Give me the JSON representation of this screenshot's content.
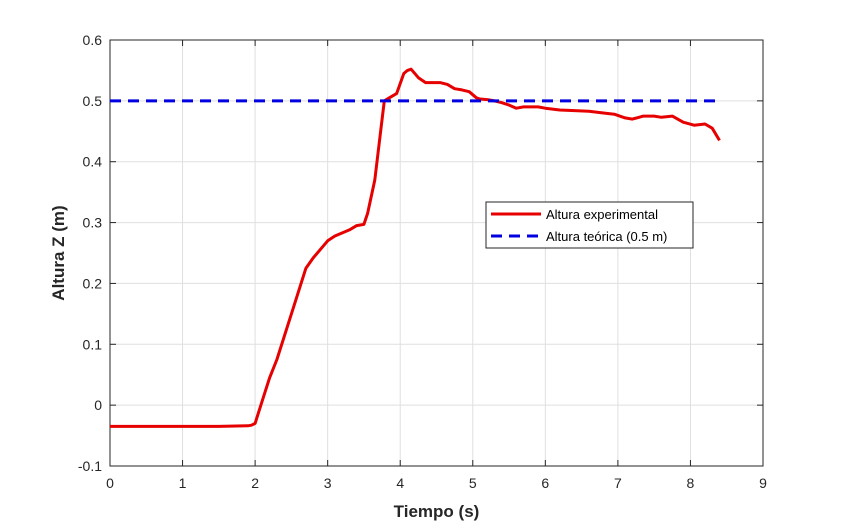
{
  "chart_data": {
    "type": "line",
    "title": "",
    "xlabel": "Tiempo (s)",
    "ylabel": "Altura Z (m)",
    "xlim": [
      0,
      9
    ],
    "ylim": [
      -0.1,
      0.6
    ],
    "xticks": [
      0,
      1,
      2,
      3,
      4,
      5,
      6,
      7,
      8,
      9
    ],
    "yticks": [
      -0.1,
      0,
      0.1,
      0.2,
      0.3,
      0.4,
      0.5,
      0.6
    ],
    "xtick_labels": [
      "0",
      "1",
      "2",
      "3",
      "4",
      "5",
      "6",
      "7",
      "8",
      "9"
    ],
    "ytick_labels": [
      "-0.1",
      "0",
      "0.1",
      "0.2",
      "0.3",
      "0.4",
      "0.5",
      "0.6"
    ],
    "grid": true,
    "legend_position": "right-center",
    "series": [
      {
        "name": "Altura experimental",
        "color": "#e60000",
        "style": "solid",
        "x": [
          0,
          0.5,
          1,
          1.5,
          1.9,
          1.95,
          2.0,
          2.1,
          2.2,
          2.3,
          2.5,
          2.7,
          2.8,
          3.0,
          3.1,
          3.3,
          3.4,
          3.5,
          3.55,
          3.65,
          3.72,
          3.78,
          3.85,
          3.95,
          4.05,
          4.1,
          4.15,
          4.25,
          4.35,
          4.45,
          4.55,
          4.65,
          4.75,
          4.85,
          4.95,
          5.05,
          5.1,
          5.2,
          5.3,
          5.4,
          5.5,
          5.6,
          5.7,
          5.8,
          5.9,
          6.0,
          6.2,
          6.4,
          6.6,
          6.8,
          6.95,
          7.1,
          7.2,
          7.35,
          7.5,
          7.6,
          7.75,
          7.9,
          8.05,
          8.2,
          8.3,
          8.4
        ],
        "y": [
          -0.035,
          -0.035,
          -0.035,
          -0.035,
          -0.034,
          -0.033,
          -0.03,
          0.008,
          0.045,
          0.075,
          0.15,
          0.225,
          0.242,
          0.27,
          0.278,
          0.288,
          0.295,
          0.297,
          0.315,
          0.37,
          0.44,
          0.5,
          0.505,
          0.512,
          0.545,
          0.55,
          0.552,
          0.538,
          0.53,
          0.53,
          0.53,
          0.527,
          0.52,
          0.518,
          0.515,
          0.505,
          0.503,
          0.502,
          0.5,
          0.497,
          0.493,
          0.488,
          0.49,
          0.49,
          0.49,
          0.488,
          0.485,
          0.484,
          0.483,
          0.48,
          0.478,
          0.472,
          0.47,
          0.475,
          0.475,
          0.473,
          0.475,
          0.465,
          0.46,
          0.462,
          0.455,
          0.435
        ]
      },
      {
        "name": "Altura teórica (0.5 m)",
        "color": "#0000e0",
        "style": "dashed",
        "x": [
          0,
          8.4
        ],
        "y": [
          0.5,
          0.5
        ]
      }
    ]
  }
}
